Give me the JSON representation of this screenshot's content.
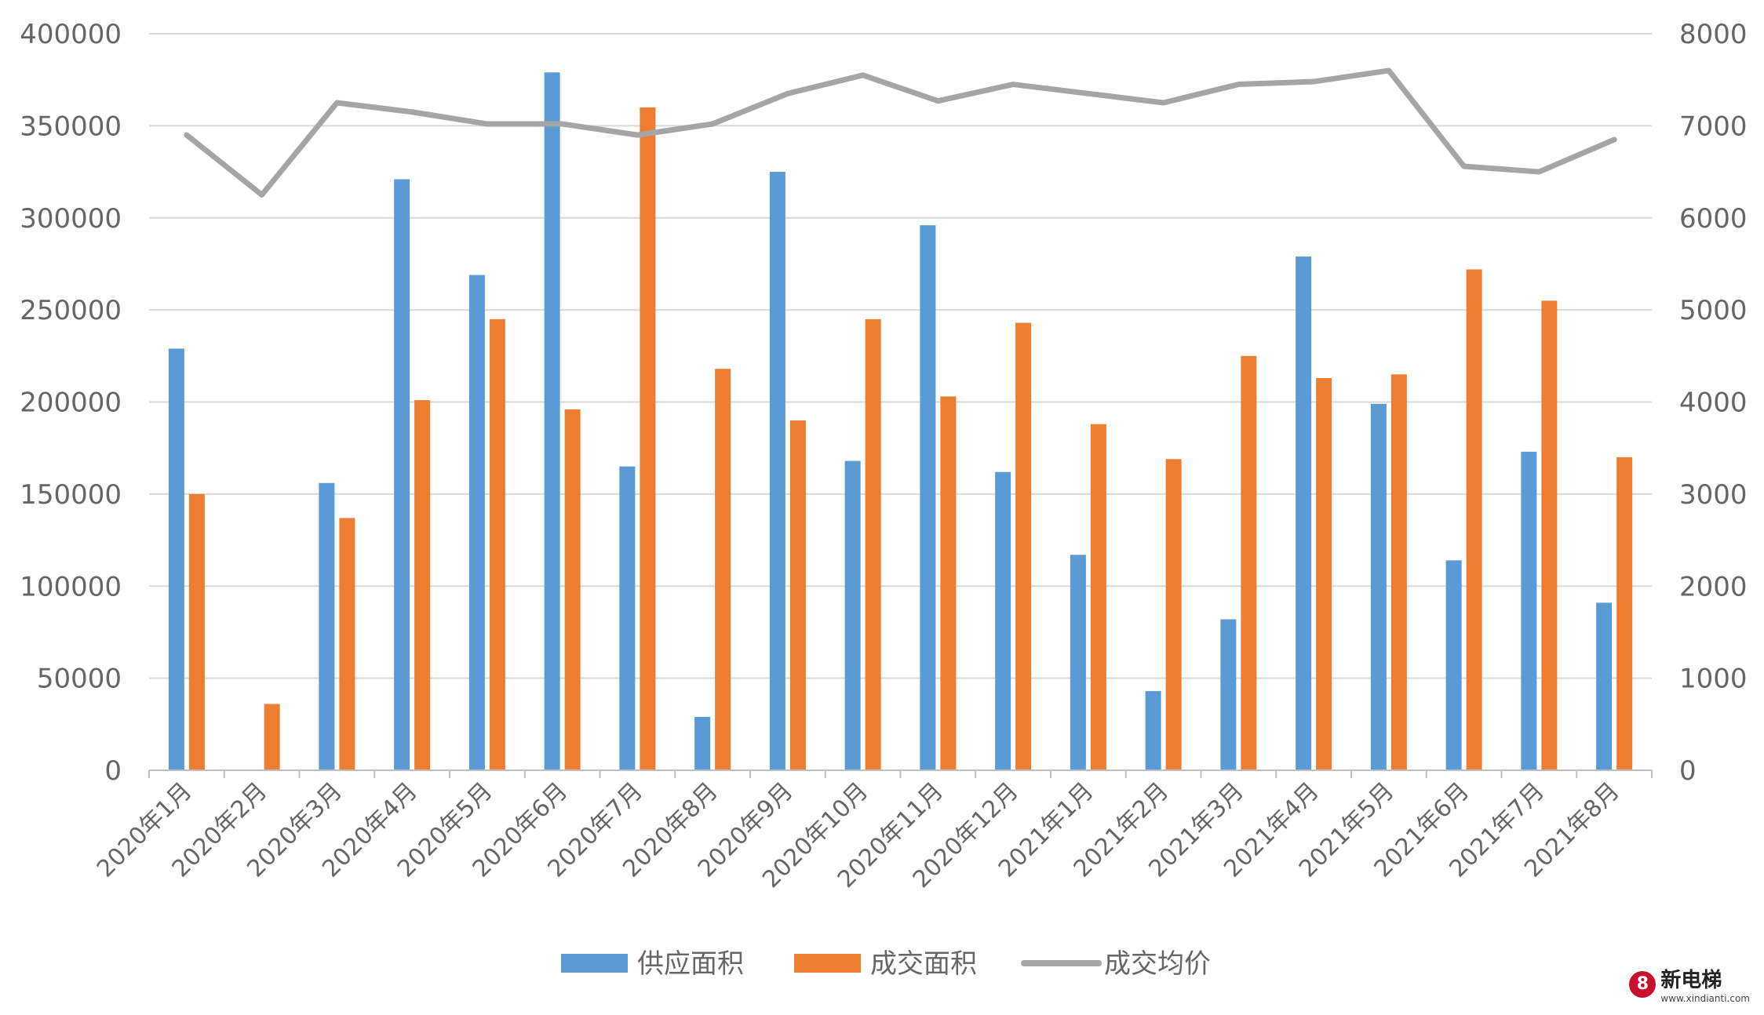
{
  "chart_data": {
    "type": "bar",
    "categories": [
      "2020年1月",
      "2020年2月",
      "2020年3月",
      "2020年4月",
      "2020年5月",
      "2020年6月",
      "2020年7月",
      "2020年8月",
      "2020年9月",
      "2020年10月",
      "2020年11月",
      "2020年12月",
      "2021年1月",
      "2021年2月",
      "2021年3月",
      "2021年4月",
      "2021年5月",
      "2021年6月",
      "2021年7月",
      "2021年8月"
    ],
    "series": [
      {
        "name": "供应面积",
        "type": "bar",
        "axis": "left",
        "color": "#5b9bd5",
        "values": [
          229000,
          0,
          156000,
          321000,
          269000,
          379000,
          165000,
          29000,
          325000,
          168000,
          296000,
          162000,
          117000,
          43000,
          82000,
          279000,
          199000,
          114000,
          173000,
          91000
        ]
      },
      {
        "name": "成交面积",
        "type": "bar",
        "axis": "left",
        "color": "#ed7d31",
        "values": [
          150000,
          36000,
          137000,
          201000,
          245000,
          196000,
          360000,
          218000,
          190000,
          245000,
          203000,
          243000,
          188000,
          169000,
          225000,
          213000,
          215000,
          272000,
          255000,
          170000
        ]
      },
      {
        "name": "成交均价",
        "type": "line",
        "axis": "right",
        "color": "#a5a5a5",
        "values": [
          6900,
          6250,
          7250,
          7150,
          7020,
          7020,
          6900,
          7020,
          7350,
          7550,
          7270,
          7450,
          7350,
          7250,
          7450,
          7480,
          7600,
          6560,
          6500,
          6850
        ]
      }
    ],
    "ylim_left": [
      0,
      400000
    ],
    "yticks_left": [
      "0",
      "50000",
      "100000",
      "150000",
      "200000",
      "250000",
      "300000",
      "350000",
      "400000"
    ],
    "ylim_right": [
      0,
      8000
    ],
    "yticks_right": [
      "0",
      "1000",
      "2000",
      "3000",
      "4000",
      "5000",
      "6000",
      "7000",
      "8000"
    ],
    "grid": true,
    "legend_position": "bottom",
    "title": "",
    "xlabel": "",
    "ylabel": ""
  },
  "watermark": {
    "logo_glyph": "8",
    "name": "新电梯",
    "url": "www.xindianti.com"
  },
  "colors": {
    "grid": "#d9d9d9",
    "axis": "#bfbfbf",
    "tick_text": "#666666"
  }
}
